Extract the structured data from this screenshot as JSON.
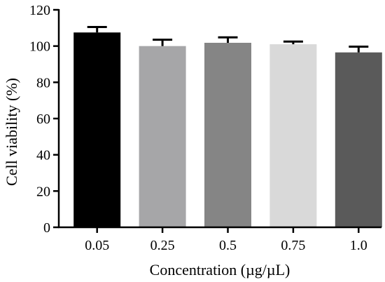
{
  "chart_data": {
    "type": "bar",
    "categories": [
      "0.05",
      "0.25",
      "0.5",
      "0.75",
      "1.0"
    ],
    "values": [
      107.5,
      100,
      101.8,
      101,
      96.5
    ],
    "errors": [
      3,
      3.5,
      3,
      1.5,
      3.2
    ],
    "colors": [
      "#000000",
      "#a6a6a8",
      "#858585",
      "#d9d9d9",
      "#5a5a5a"
    ],
    "xlabel": "Concentration (µg/µL)",
    "ylabel": "Cell viability (%)",
    "ylim": [
      0,
      120
    ],
    "yticks": [
      0,
      20,
      40,
      60,
      80,
      100,
      120
    ],
    "grid": false,
    "legend": "none"
  }
}
